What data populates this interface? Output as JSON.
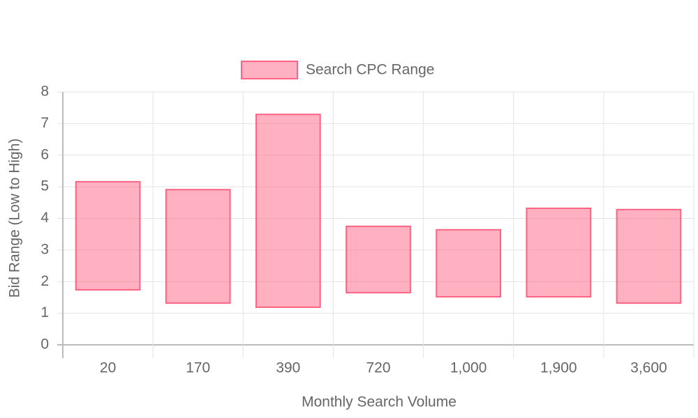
{
  "chart_data": {
    "type": "floating-bar",
    "x_label": "Monthly Search Volume",
    "y_label": "Bid Range (Low to High)",
    "categories": [
      "20",
      "170",
      "390",
      "720",
      "1,000",
      "1,900",
      "3,600"
    ],
    "series": [
      {
        "name": "Search CPC Range",
        "color": "rgba(255, 99, 132, 0.5)",
        "border_color": "rgb(255, 99, 132)",
        "values": [
          [
            1.74,
            5.16
          ],
          [
            1.32,
            4.91
          ],
          [
            1.19,
            7.29
          ],
          [
            1.65,
            3.75
          ],
          [
            1.52,
            3.64
          ],
          [
            1.52,
            4.32
          ],
          [
            1.32,
            4.28
          ]
        ]
      }
    ],
    "ylim": [
      0,
      8
    ],
    "yticks": [
      0,
      1,
      2,
      3,
      4,
      5,
      6,
      7,
      8
    ],
    "grid": true
  }
}
